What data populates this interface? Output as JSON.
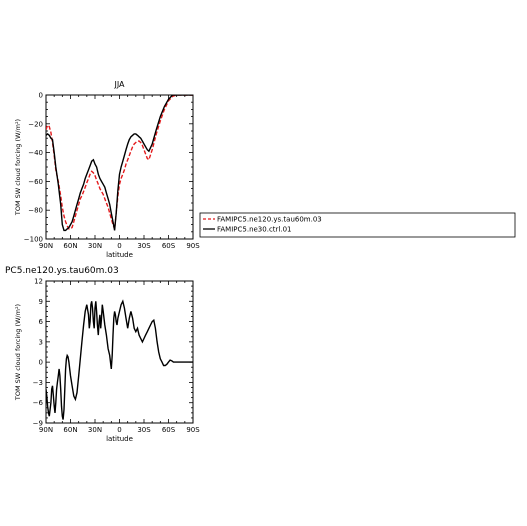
{
  "chart_data": [
    {
      "type": "line",
      "title": "JJA",
      "xlabel": "latitude",
      "ylabel": "TOM SW cloud forcing (W/m²)",
      "xlim": [
        90,
        -90
      ],
      "ylim": [
        -100,
        0
      ],
      "xticks": [
        90,
        60,
        30,
        0,
        -30,
        -60,
        -90
      ],
      "xtick_labels": [
        "90N",
        "60N",
        "30N",
        "0",
        "30S",
        "60S",
        "90S"
      ],
      "yticks": [
        -100,
        -80,
        -60,
        -40,
        -20,
        0
      ],
      "ytick_labels": [
        "−100",
        "−80",
        "−60",
        "−40",
        "−20",
        "0"
      ],
      "legend": "right",
      "series": [
        {
          "name": "FAMIPC5.ne120.ys.tau60m.03",
          "color": "#e41a1c",
          "dash": "dashed",
          "x": [
            90,
            88,
            86,
            84,
            82,
            80,
            78,
            75,
            72,
            70,
            68,
            66,
            64,
            62,
            60,
            58,
            56,
            54,
            52,
            50,
            48,
            46,
            44,
            42,
            40,
            38,
            36,
            34,
            32,
            30,
            28,
            26,
            24,
            22,
            20,
            18,
            16,
            14,
            12,
            10,
            8,
            6,
            4,
            2,
            0,
            -2,
            -4,
            -6,
            -8,
            -10,
            -12,
            -14,
            -16,
            -18,
            -20,
            -22,
            -24,
            -26,
            -28,
            -30,
            -32,
            -34,
            -36,
            -40,
            -45,
            -50,
            -55,
            -60,
            -65,
            -70,
            -75,
            -80,
            -85,
            -90
          ],
          "y": [
            -24,
            -21,
            -22,
            -26,
            -33,
            -42,
            -52,
            -60,
            -70,
            -78,
            -84,
            -88,
            -91,
            -93,
            -93,
            -92,
            -88,
            -84,
            -80,
            -76,
            -72,
            -70,
            -67,
            -64,
            -61,
            -58,
            -55,
            -53,
            -54,
            -56,
            -59,
            -62,
            -65,
            -67,
            -69,
            -72,
            -75,
            -78,
            -82,
            -86,
            -90,
            -93,
            -82,
            -70,
            -62,
            -58,
            -55,
            -52,
            -48,
            -45,
            -42,
            -39,
            -36,
            -34,
            -33,
            -32,
            -32,
            -33,
            -35,
            -38,
            -41,
            -44,
            -45,
            -38,
            -27,
            -18,
            -10,
            -4,
            -1,
            0,
            0,
            0,
            0,
            0
          ]
        },
        {
          "name": "FAMIPC5.ne30.ctrl.01",
          "color": "#000000",
          "dash": "solid",
          "x": [
            90,
            88,
            86,
            84,
            82,
            80,
            78,
            75,
            72,
            70,
            68,
            66,
            64,
            62,
            60,
            58,
            56,
            54,
            52,
            50,
            48,
            46,
            44,
            42,
            40,
            38,
            36,
            34,
            32,
            30,
            28,
            26,
            24,
            22,
            20,
            18,
            16,
            14,
            12,
            10,
            8,
            6,
            4,
            2,
            0,
            -2,
            -4,
            -6,
            -8,
            -10,
            -12,
            -14,
            -16,
            -18,
            -20,
            -22,
            -24,
            -26,
            -28,
            -30,
            -32,
            -34,
            -36,
            -40,
            -45,
            -50,
            -55,
            -60,
            -65,
            -70,
            -75,
            -80,
            -85,
            -90
          ],
          "y": [
            -28,
            -27,
            -28,
            -30,
            -31,
            -40,
            -50,
            -62,
            -76,
            -90,
            -94,
            -94,
            -93,
            -92,
            -90,
            -88,
            -84,
            -80,
            -76,
            -72,
            -68,
            -65,
            -62,
            -58,
            -55,
            -52,
            -49,
            -46,
            -45,
            -48,
            -50,
            -55,
            -58,
            -60,
            -62,
            -64,
            -68,
            -72,
            -76,
            -82,
            -88,
            -94,
            -82,
            -66,
            -55,
            -50,
            -46,
            -42,
            -38,
            -34,
            -31,
            -29,
            -28,
            -27,
            -27,
            -28,
            -29,
            -30,
            -32,
            -34,
            -36,
            -38,
            -39,
            -34,
            -24,
            -15,
            -8,
            -3,
            0,
            0,
            0,
            0,
            0,
            0
          ]
        }
      ]
    },
    {
      "type": "line",
      "title": "PC5.ne120.ys.tau60m.03",
      "xlabel": "latitude",
      "ylabel": "TOM SW cloud forcing (W/m²)",
      "xlim": [
        90,
        -90
      ],
      "ylim": [
        -9,
        12
      ],
      "xticks": [
        90,
        60,
        30,
        0,
        -30,
        -60,
        -90
      ],
      "xtick_labels": [
        "90N",
        "60N",
        "30N",
        "0",
        "30S",
        "60S",
        "90S"
      ],
      "yticks": [
        -9,
        -6,
        -3,
        0,
        3,
        6,
        9,
        12
      ],
      "ytick_labels": [
        "−9",
        "−6",
        "−3",
        "0",
        "3",
        "6",
        "9",
        "12"
      ],
      "series": [
        {
          "color": "#000000",
          "x": [
            90,
            89,
            88,
            87,
            86,
            85,
            84,
            83,
            82,
            81,
            80,
            79,
            78,
            77,
            76,
            75,
            74,
            73,
            72,
            71,
            70,
            69,
            68,
            67,
            66,
            65,
            64,
            63,
            62,
            61,
            60,
            58,
            56,
            54,
            52,
            50,
            48,
            46,
            44,
            42,
            40,
            38,
            37,
            36,
            35,
            34,
            33,
            32,
            31,
            30,
            29,
            28,
            27,
            26,
            25,
            24,
            23,
            22,
            21,
            20,
            18,
            16,
            14,
            12,
            10,
            9,
            8,
            7,
            6,
            5,
            4,
            3,
            2,
            1,
            0,
            -2,
            -4,
            -6,
            -8,
            -10,
            -12,
            -14,
            -16,
            -18,
            -20,
            -22,
            -24,
            -26,
            -28,
            -30,
            -32,
            -34,
            -36,
            -38,
            -40,
            -42,
            -44,
            -46,
            -48,
            -50,
            -52,
            -54,
            -56,
            -58,
            -60,
            -62,
            -64,
            -66,
            -68,
            -70,
            -75,
            -80,
            -85,
            -90
          ],
          "y": [
            -4.0,
            -5.0,
            -6.5,
            -7.5,
            -8.0,
            -7.0,
            -6.0,
            -4.0,
            -3.5,
            -5.0,
            -6.5,
            -7.5,
            -6.0,
            -4.0,
            -3.0,
            -2.0,
            -1.0,
            -2.0,
            -4.0,
            -6.5,
            -8.0,
            -8.5,
            -7.0,
            -4.0,
            -1.0,
            0.5,
            1.0,
            0.8,
            0.0,
            -1.0,
            -2.0,
            -3.5,
            -5.0,
            -5.5,
            -4.5,
            -2.0,
            0.5,
            3.0,
            5.5,
            7.5,
            8.5,
            7.0,
            5.0,
            6.0,
            8.5,
            9.0,
            8.0,
            6.0,
            5.0,
            8.0,
            9.0,
            7.5,
            5.5,
            4.0,
            6.0,
            7.0,
            5.0,
            6.5,
            8.5,
            7.5,
            5.5,
            4.0,
            2.0,
            1.0,
            -1.0,
            1.0,
            4.0,
            6.5,
            7.5,
            7.0,
            6.0,
            5.5,
            6.5,
            7.0,
            7.5,
            8.5,
            9.0,
            8.0,
            6.5,
            5.0,
            6.5,
            7.5,
            6.5,
            5.0,
            4.5,
            5.0,
            4.0,
            3.5,
            3.0,
            3.5,
            4.0,
            4.5,
            5.0,
            5.5,
            6.0,
            6.2,
            5.0,
            3.0,
            1.5,
            0.5,
            0.0,
            -0.5,
            -0.5,
            -0.3,
            0.0,
            0.3,
            0.2,
            0.0,
            0.0,
            0.0,
            0.0,
            0.0,
            0.0,
            0.0
          ]
        }
      ]
    }
  ]
}
